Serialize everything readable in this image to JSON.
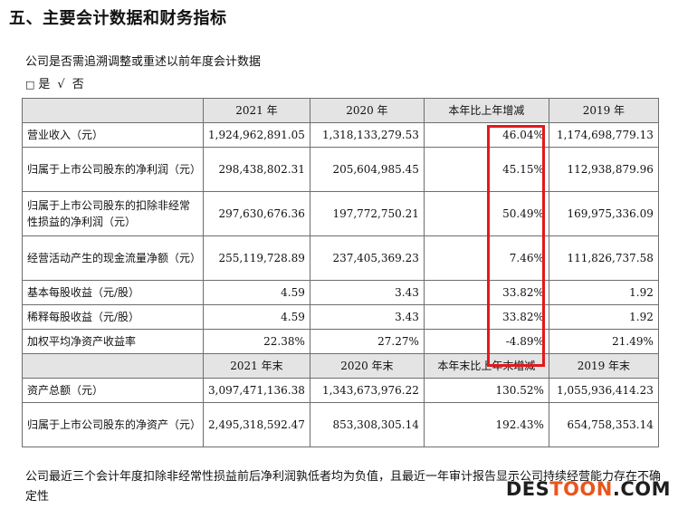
{
  "heading": "五、主要会计数据和财务指标",
  "intro": "公司是否需追溯调整或重述以前年度会计数据",
  "choice": {
    "box": "□",
    "yes": "是",
    "check": "√",
    "no": "否"
  },
  "table_top": {
    "headers": [
      "",
      "2021 年",
      "2020 年",
      "本年比上年增减",
      "2019 年"
    ],
    "rows": [
      {
        "label": "营业收入（元）",
        "v2021": "1,924,962,891.05",
        "v2020": "1,318,133,279.53",
        "change": "46.04%",
        "v2019": "1,174,698,779.13"
      },
      {
        "label": "归属于上市公司股东的净利润（元）",
        "v2021": "298,438,802.31",
        "v2020": "205,604,985.45",
        "change": "45.15%",
        "v2019": "112,938,879.96"
      },
      {
        "label": "归属于上市公司股东的扣除非经常性损益的净利润（元）",
        "v2021": "297,630,676.36",
        "v2020": "197,772,750.21",
        "change": "50.49%",
        "v2019": "169,975,336.09"
      },
      {
        "label": "经营活动产生的现金流量净额（元）",
        "v2021": "255,119,728.89",
        "v2020": "237,405,369.23",
        "change": "7.46%",
        "v2019": "111,826,737.58"
      },
      {
        "label": "基本每股收益（元/股）",
        "v2021": "4.59",
        "v2020": "3.43",
        "change": "33.82%",
        "v2019": "1.92"
      },
      {
        "label": "稀释每股收益（元/股）",
        "v2021": "4.59",
        "v2020": "3.43",
        "change": "33.82%",
        "v2019": "1.92"
      },
      {
        "label": "加权平均净资产收益率",
        "v2021": "22.38%",
        "v2020": "27.27%",
        "change": "-4.89%",
        "v2019": "21.49%"
      }
    ]
  },
  "table_bottom": {
    "headers": [
      "",
      "2021 年末",
      "2020 年末",
      "本年末比上年末增减",
      "2019 年末"
    ],
    "rows": [
      {
        "label": "资产总额（元）",
        "v2021": "3,097,471,136.38",
        "v2020": "1,343,673,976.22",
        "change": "130.52%",
        "v2019": "1,055,936,414.23"
      },
      {
        "label": "归属于上市公司股东的净资产（元）",
        "v2021": "2,495,318,592.47",
        "v2020": "853,308,305.14",
        "change": "192.43%",
        "v2019": "654,758,353.14"
      }
    ]
  },
  "note": "公司最近三个会计年度扣除非经常性损益前后净利润孰低者均为负值，且最近一年审计报告显示公司持续经营能力存在不确定性",
  "watermark": {
    "part1": "DES",
    "part2": "TOON",
    "part3": ".COM"
  },
  "highlight_color": "#e2191c"
}
